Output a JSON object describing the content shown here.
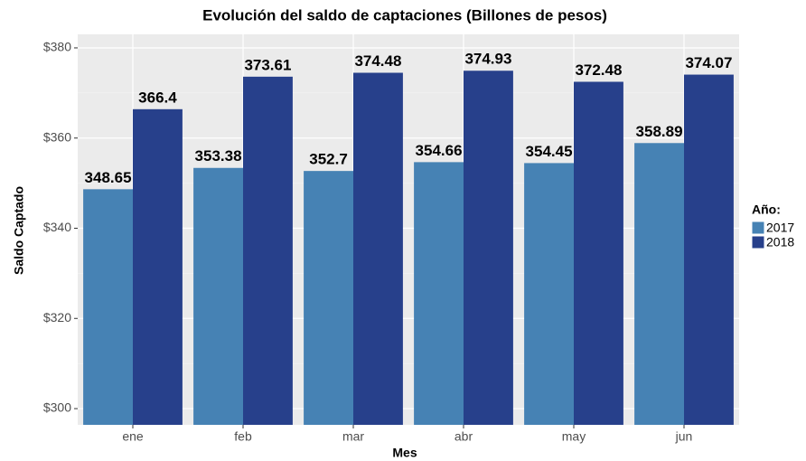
{
  "chart_data": {
    "type": "bar",
    "title": "Evolución del saldo de captaciones (Billones de pesos)",
    "x_label": "Mes",
    "y_label": "Saldo Captado",
    "legend_title": "Año:",
    "legend_position": "right",
    "categories": [
      "ene",
      "feb",
      "mar",
      "abr",
      "may",
      "jun"
    ],
    "series": [
      {
        "name": "2017",
        "color": "#4682b4",
        "values": [
          348.65,
          353.38,
          352.7,
          354.66,
          354.45,
          358.89
        ]
      },
      {
        "name": "2018",
        "color": "#27408b",
        "values": [
          366.4,
          373.61,
          374.48,
          374.93,
          372.48,
          374.07
        ]
      }
    ],
    "ylim": [
      296.4,
      383
    ],
    "yticks": [
      {
        "value": 300,
        "label": "$300"
      },
      {
        "value": 320,
        "label": "$320"
      },
      {
        "value": 340,
        "label": "$340"
      },
      {
        "value": 360,
        "label": "$360"
      },
      {
        "value": 380,
        "label": "$380"
      }
    ],
    "grid": true
  }
}
